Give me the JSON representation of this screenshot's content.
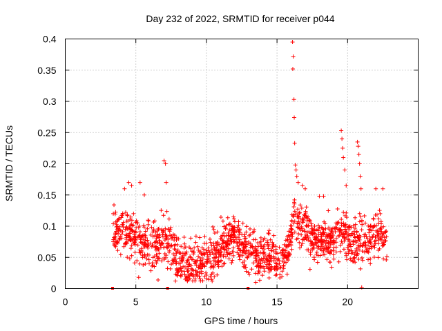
{
  "chart_data": {
    "type": "scatter",
    "title": "Day 232 of 2022, SRMTID for receiver p044",
    "xlabel": "GPS time / hours",
    "ylabel": "SRMTID / TECUs",
    "xlim": [
      0,
      25
    ],
    "ylim": [
      0,
      0.4
    ],
    "xticks": [
      0,
      5,
      10,
      15,
      20
    ],
    "xtick_labels": [
      "0",
      "5",
      "10",
      "15",
      "20"
    ],
    "yticks": [
      0,
      0.05,
      0.1,
      0.15,
      0.2,
      0.25,
      0.3,
      0.35,
      0.4
    ],
    "ytick_labels": [
      "0",
      "0.05",
      "0.1",
      "0.15",
      "0.2",
      "0.25",
      "0.3",
      "0.35",
      "0.4"
    ],
    "grid": true,
    "marker": "plus",
    "color": "#ff0000",
    "data_coverage_hours": [
      3.4,
      22.8
    ],
    "trend": [
      [
        3.4,
        0.09
      ],
      [
        3.8,
        0.095
      ],
      [
        4.2,
        0.085
      ],
      [
        4.6,
        0.09
      ],
      [
        5.0,
        0.08
      ],
      [
        5.4,
        0.075
      ],
      [
        5.8,
        0.065
      ],
      [
        6.2,
        0.065
      ],
      [
        6.6,
        0.07
      ],
      [
        7.0,
        0.08
      ],
      [
        7.4,
        0.075
      ],
      [
        7.8,
        0.055
      ],
      [
        8.2,
        0.045
      ],
      [
        8.6,
        0.04
      ],
      [
        9.0,
        0.037
      ],
      [
        9.4,
        0.042
      ],
      [
        9.8,
        0.045
      ],
      [
        10.2,
        0.05
      ],
      [
        10.6,
        0.055
      ],
      [
        11.0,
        0.065
      ],
      [
        11.4,
        0.07
      ],
      [
        11.8,
        0.082
      ],
      [
        12.2,
        0.08
      ],
      [
        12.6,
        0.065
      ],
      [
        13.0,
        0.06
      ],
      [
        13.4,
        0.05
      ],
      [
        13.8,
        0.05
      ],
      [
        14.2,
        0.052
      ],
      [
        14.6,
        0.05
      ],
      [
        15.0,
        0.045
      ],
      [
        15.4,
        0.05
      ],
      [
        15.8,
        0.065
      ],
      [
        16.2,
        0.12
      ],
      [
        16.6,
        0.1
      ],
      [
        17.0,
        0.1
      ],
      [
        17.4,
        0.085
      ],
      [
        17.8,
        0.075
      ],
      [
        18.2,
        0.075
      ],
      [
        18.6,
        0.08
      ],
      [
        19.0,
        0.08
      ],
      [
        19.4,
        0.095
      ],
      [
        19.8,
        0.085
      ],
      [
        20.2,
        0.075
      ],
      [
        20.6,
        0.08
      ],
      [
        21.0,
        0.075
      ],
      [
        21.4,
        0.08
      ],
      [
        21.8,
        0.09
      ],
      [
        22.2,
        0.09
      ],
      [
        22.6,
        0.085
      ],
      [
        22.8,
        0.08
      ]
    ],
    "spread": 0.03,
    "point_count": 1500,
    "outliers": [
      [
        3.4,
        0.12
      ],
      [
        4.2,
        0.16
      ],
      [
        4.5,
        0.17
      ],
      [
        4.7,
        0.165
      ],
      [
        5.3,
        0.17
      ],
      [
        5.6,
        0.15
      ],
      [
        5.2,
        0.018
      ],
      [
        7.0,
        0.205
      ],
      [
        7.1,
        0.2
      ],
      [
        7.15,
        0.17
      ],
      [
        16.1,
        0.395
      ],
      [
        16.15,
        0.372
      ],
      [
        16.12,
        0.352
      ],
      [
        16.2,
        0.303
      ],
      [
        16.22,
        0.274
      ],
      [
        16.25,
        0.233
      ],
      [
        16.3,
        0.198
      ],
      [
        16.35,
        0.19
      ],
      [
        16.4,
        0.18
      ],
      [
        16.5,
        0.17
      ],
      [
        16.8,
        0.165
      ],
      [
        19.55,
        0.253
      ],
      [
        19.6,
        0.24
      ],
      [
        19.65,
        0.225
      ],
      [
        19.7,
        0.21
      ],
      [
        19.8,
        0.19
      ],
      [
        19.9,
        0.165
      ],
      [
        20.7,
        0.235
      ],
      [
        20.75,
        0.228
      ],
      [
        20.8,
        0.215
      ],
      [
        20.85,
        0.2
      ],
      [
        20.9,
        0.18
      ],
      [
        20.95,
        0.16
      ],
      [
        21.0,
        0.002
      ],
      [
        22.0,
        0.16
      ],
      [
        22.5,
        0.16
      ],
      [
        18.0,
        0.148
      ],
      [
        18.3,
        0.148
      ],
      [
        17.0,
        0.16
      ],
      [
        13.5,
        0.01
      ]
    ],
    "zero_markers": [
      3.35,
      7.25,
      12.95
    ]
  }
}
